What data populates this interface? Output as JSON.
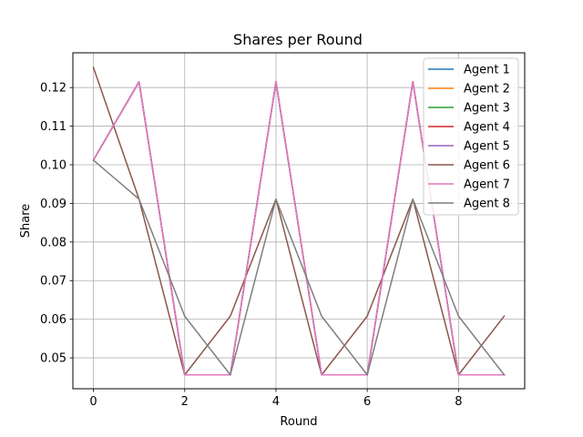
{
  "chart_data": {
    "type": "line",
    "title": "Shares per Round",
    "xlabel": "Round",
    "ylabel": "Share",
    "xlim": [
      -0.45,
      9.45
    ],
    "ylim": [
      0.042,
      0.129
    ],
    "xticks": [
      0,
      2,
      4,
      6,
      8
    ],
    "yticks": [
      0.05,
      0.06,
      0.07,
      0.08,
      0.09,
      0.1,
      0.11,
      0.12
    ],
    "ytick_labels": [
      "0.05",
      "0.06",
      "0.07",
      "0.08",
      "0.09",
      "0.10",
      "0.11",
      "0.12"
    ],
    "grid": true,
    "legend_position": "top-right",
    "x": [
      0,
      1,
      2,
      3,
      4,
      5,
      6,
      7,
      8,
      9
    ],
    "series": [
      {
        "name": "Agent 1",
        "color": "#1f77b4",
        "values": [
          0.1012,
          0.1215,
          0.0456,
          0.0456,
          0.1215,
          0.0456,
          0.0456,
          0.1215,
          0.0456,
          0.0456
        ]
      },
      {
        "name": "Agent 2",
        "color": "#ff7f0e",
        "values": [
          0.1012,
          0.1215,
          0.0456,
          0.0456,
          0.1215,
          0.0456,
          0.0456,
          0.1215,
          0.0456,
          0.0456
        ]
      },
      {
        "name": "Agent 3",
        "color": "#2ca02c",
        "values": [
          0.1012,
          0.1215,
          0.0456,
          0.0456,
          0.1215,
          0.0456,
          0.0456,
          0.1215,
          0.0456,
          0.0456
        ]
      },
      {
        "name": "Agent 4",
        "color": "#d62728",
        "values": [
          0.1012,
          0.1215,
          0.0456,
          0.0456,
          0.1215,
          0.0456,
          0.0456,
          0.1215,
          0.0456,
          0.0456
        ]
      },
      {
        "name": "Agent 5",
        "color": "#9467bd",
        "values": [
          0.1012,
          0.1215,
          0.0456,
          0.0456,
          0.1215,
          0.0456,
          0.0456,
          0.1215,
          0.0456,
          0.0456
        ]
      },
      {
        "name": "Agent 6",
        "color": "#8c564b",
        "values": [
          0.1252,
          0.0911,
          0.0456,
          0.0608,
          0.0911,
          0.0456,
          0.0608,
          0.0911,
          0.0456,
          0.0608
        ]
      },
      {
        "name": "Agent 7",
        "color": "#e377c2",
        "values": [
          0.1012,
          0.1215,
          0.0456,
          0.0456,
          0.1215,
          0.0456,
          0.0456,
          0.1215,
          0.0456,
          0.0456
        ]
      },
      {
        "name": "Agent 8",
        "color": "#7f7f7f",
        "values": [
          0.1012,
          0.0911,
          0.0608,
          0.0456,
          0.0911,
          0.0608,
          0.0456,
          0.0911,
          0.0608,
          0.0456
        ]
      }
    ]
  }
}
